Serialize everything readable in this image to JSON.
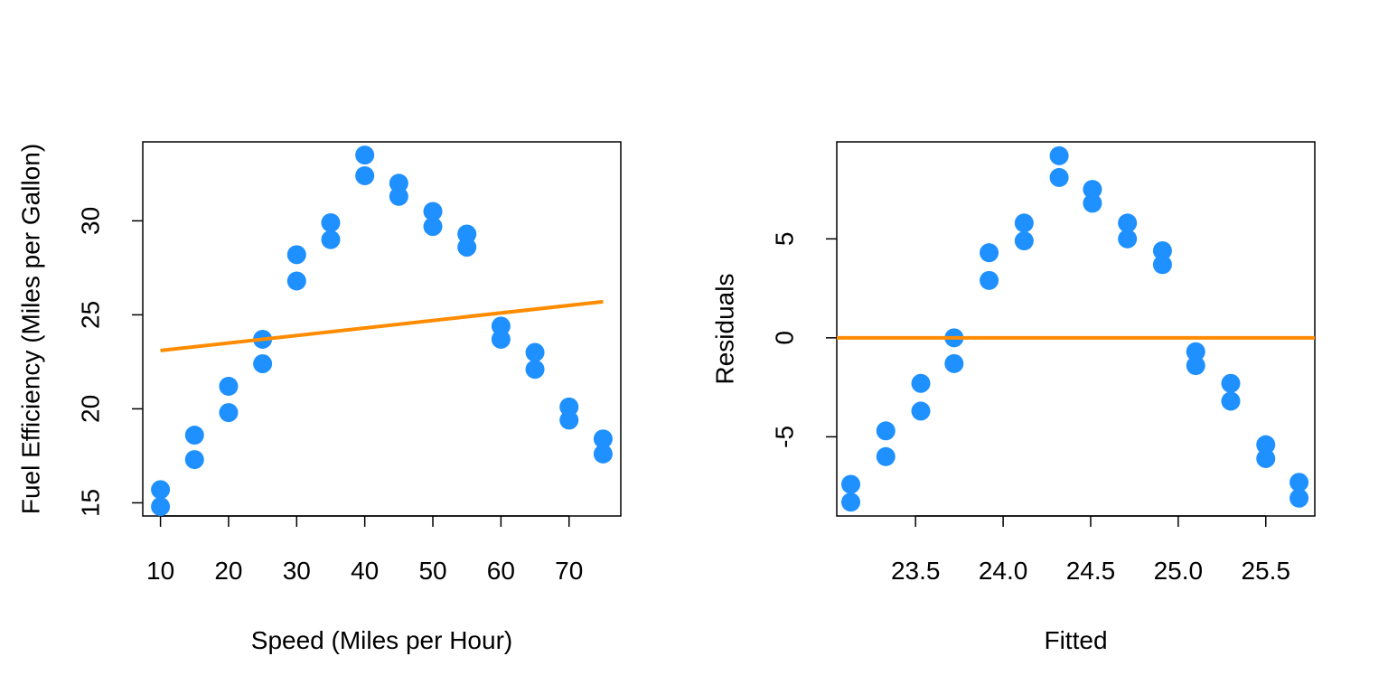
{
  "colors": {
    "points": "#1E90FF",
    "fit_line": "#FF8C00",
    "axes": "#000000"
  },
  "chart_data": [
    {
      "type": "scatter",
      "title": "",
      "xlabel": "Speed (Miles per Hour)",
      "ylabel": "Fuel Efficiency (Miles per Gallon)",
      "xlim": [
        7.4,
        77.6
      ],
      "ylim": [
        14.3,
        34.2
      ],
      "xticks": [
        10,
        20,
        30,
        40,
        50,
        60,
        70
      ],
      "xtick_labels": [
        "10",
        "20",
        "30",
        "40",
        "50",
        "60",
        "70"
      ],
      "yticks": [
        15,
        20,
        25,
        30
      ],
      "ytick_labels": [
        "15",
        "20",
        "25",
        "30"
      ],
      "grid": false,
      "series": [
        {
          "kind": "points",
          "x": [
            10,
            10,
            15,
            15,
            20,
            20,
            25,
            25,
            30,
            30,
            35,
            35,
            40,
            40,
            45,
            45,
            50,
            50,
            55,
            55,
            60,
            60,
            65,
            65,
            70,
            70,
            75,
            75
          ],
          "y": [
            15.7,
            14.8,
            18.6,
            17.3,
            21.2,
            19.8,
            23.7,
            22.4,
            28.2,
            26.8,
            29.9,
            29.0,
            33.5,
            32.4,
            32.0,
            31.3,
            30.5,
            29.7,
            29.3,
            28.6,
            24.4,
            23.7,
            23.0,
            22.1,
            20.1,
            19.4,
            18.4,
            17.6
          ]
        },
        {
          "kind": "line",
          "x": [
            10,
            75
          ],
          "y": [
            23.1,
            25.7
          ]
        }
      ]
    },
    {
      "type": "scatter",
      "title": "",
      "xlabel": "Fitted",
      "ylabel": "Residuals",
      "xlim": [
        23.05,
        25.78
      ],
      "ylim": [
        -9.0,
        9.9
      ],
      "xticks": [
        23.5,
        24.0,
        24.5,
        25.0,
        25.5
      ],
      "xtick_labels": [
        "23.5",
        "24.0",
        "24.5",
        "25.0",
        "25.5"
      ],
      "yticks": [
        -5,
        0,
        5
      ],
      "ytick_labels": [
        "-5",
        "0",
        "5"
      ],
      "grid": false,
      "series": [
        {
          "kind": "points",
          "x": [
            23.13,
            23.13,
            23.33,
            23.33,
            23.53,
            23.53,
            23.72,
            23.72,
            23.92,
            23.92,
            24.12,
            24.12,
            24.32,
            24.32,
            24.51,
            24.51,
            24.71,
            24.71,
            24.91,
            24.91,
            25.1,
            25.1,
            25.3,
            25.3,
            25.5,
            25.5,
            25.69,
            25.69
          ],
          "y": [
            -7.4,
            -8.3,
            -4.7,
            -6.0,
            -2.3,
            -3.7,
            0.0,
            -1.3,
            4.3,
            2.9,
            5.8,
            4.9,
            9.2,
            8.1,
            7.5,
            6.8,
            5.8,
            5.0,
            4.4,
            3.7,
            -0.7,
            -1.4,
            -2.3,
            -3.2,
            -5.4,
            -6.1,
            -7.3,
            -8.1
          ]
        },
        {
          "kind": "hline",
          "y": 0
        }
      ]
    }
  ]
}
